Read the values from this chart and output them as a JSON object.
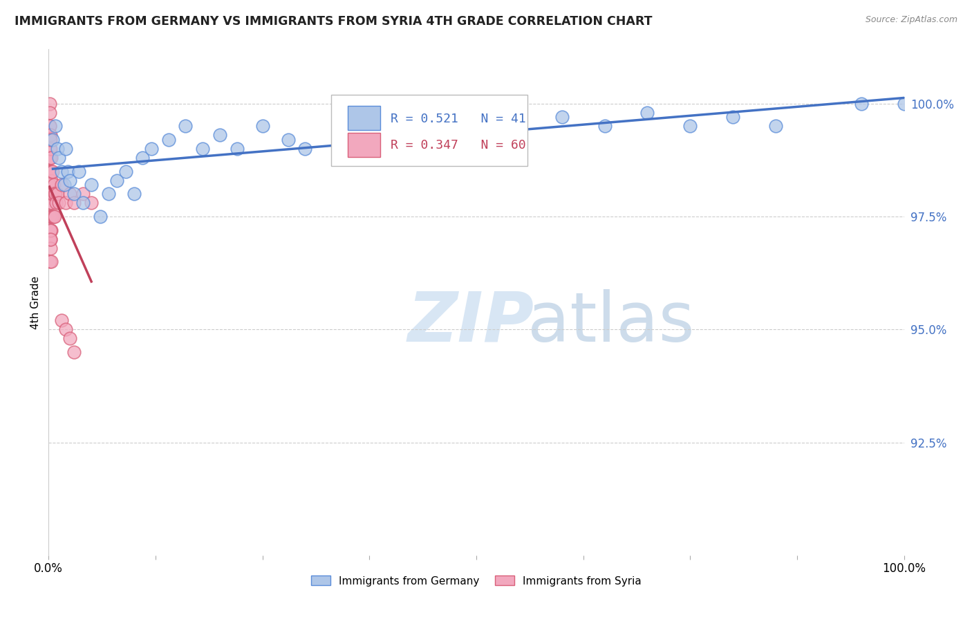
{
  "title": "IMMIGRANTS FROM GERMANY VS IMMIGRANTS FROM SYRIA 4TH GRADE CORRELATION CHART",
  "source": "Source: ZipAtlas.com",
  "ylabel": "4th Grade",
  "legend_labels": [
    "Immigrants from Germany",
    "Immigrants from Syria"
  ],
  "germany_color": "#aec6e8",
  "syria_color": "#f2a8be",
  "germany_edge_color": "#5b8dd9",
  "syria_edge_color": "#d9607a",
  "germany_line_color": "#4472c4",
  "syria_line_color": "#c0405a",
  "germany_R": 0.521,
  "germany_N": 41,
  "syria_R": 0.347,
  "syria_N": 60,
  "xlim": [
    0,
    100
  ],
  "ylim": [
    90.0,
    101.2
  ],
  "yticks": [
    92.5,
    95.0,
    97.5,
    100.0
  ],
  "ytick_labels": [
    "92.5%",
    "95.0%",
    "97.5%",
    "100.0%"
  ],
  "watermark_zip": "ZIP",
  "watermark_atlas": "atlas",
  "germany_x": [
    0.5,
    0.8,
    1.0,
    1.2,
    1.5,
    1.8,
    2.0,
    2.2,
    2.5,
    3.0,
    3.5,
    4.0,
    5.0,
    6.0,
    7.0,
    8.0,
    9.0,
    10.0,
    11.0,
    12.0,
    14.0,
    16.0,
    18.0,
    20.0,
    22.0,
    25.0,
    28.0,
    30.0,
    35.0,
    40.0,
    45.0,
    50.0,
    55.0,
    60.0,
    65.0,
    70.0,
    75.0,
    80.0,
    85.0,
    95.0,
    100.0
  ],
  "germany_y": [
    99.2,
    99.5,
    99.0,
    98.8,
    98.5,
    98.2,
    99.0,
    98.5,
    98.3,
    98.0,
    98.5,
    97.8,
    98.2,
    97.5,
    98.0,
    98.3,
    98.5,
    98.0,
    98.8,
    99.0,
    99.2,
    99.5,
    99.0,
    99.3,
    99.0,
    99.5,
    99.2,
    99.0,
    99.3,
    99.5,
    99.5,
    99.3,
    99.5,
    99.7,
    99.5,
    99.8,
    99.5,
    99.7,
    99.5,
    100.0,
    100.0
  ],
  "syria_x": [
    0.1,
    0.1,
    0.1,
    0.1,
    0.1,
    0.1,
    0.1,
    0.1,
    0.1,
    0.1,
    0.15,
    0.15,
    0.15,
    0.15,
    0.15,
    0.15,
    0.2,
    0.2,
    0.2,
    0.2,
    0.2,
    0.2,
    0.25,
    0.25,
    0.25,
    0.25,
    0.3,
    0.3,
    0.3,
    0.3,
    0.4,
    0.4,
    0.4,
    0.5,
    0.5,
    0.5,
    0.6,
    0.6,
    0.7,
    0.7,
    0.8,
    0.9,
    1.0,
    1.2,
    1.5,
    2.0,
    2.5,
    3.0,
    4.0,
    5.0,
    0.15,
    0.15,
    0.2,
    0.2,
    0.25,
    0.3,
    1.5,
    2.0,
    2.5,
    3.0
  ],
  "syria_y": [
    100.0,
    99.8,
    99.5,
    99.3,
    99.0,
    98.8,
    98.5,
    98.2,
    98.0,
    97.8,
    99.5,
    99.2,
    98.8,
    98.5,
    98.2,
    97.5,
    99.3,
    99.0,
    98.5,
    98.0,
    97.5,
    97.0,
    99.2,
    98.5,
    98.0,
    97.2,
    98.8,
    98.3,
    97.8,
    97.2,
    98.5,
    98.0,
    97.5,
    98.5,
    98.0,
    97.5,
    98.2,
    97.5,
    98.0,
    97.5,
    98.0,
    97.8,
    98.0,
    97.8,
    98.2,
    97.8,
    98.0,
    97.8,
    98.0,
    97.8,
    97.0,
    96.5,
    97.2,
    96.8,
    97.0,
    96.5,
    95.2,
    95.0,
    94.8,
    94.5
  ]
}
